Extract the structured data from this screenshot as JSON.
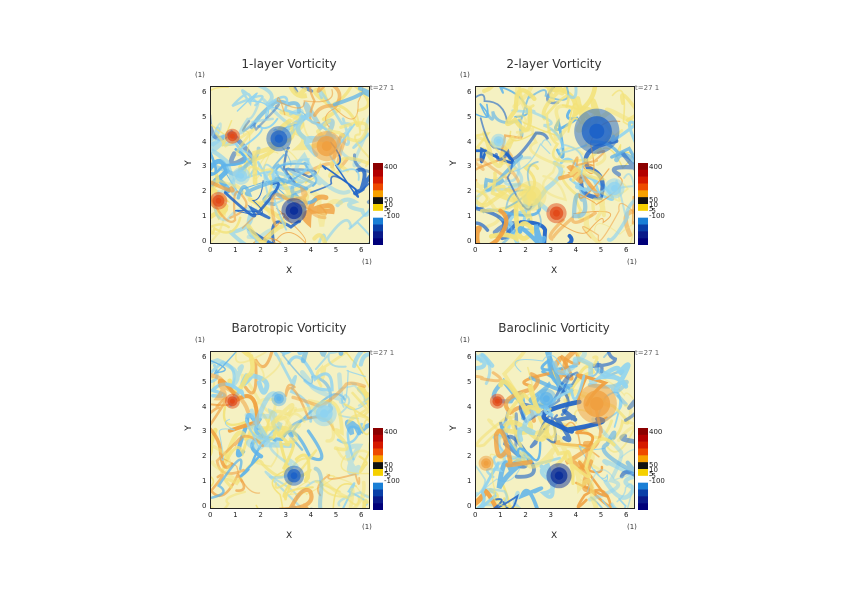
{
  "panels": [
    {
      "title": "1-layer Vorticity",
      "time_label": "t=27 1",
      "unit_label": "(1)"
    },
    {
      "title": "2-layer Vorticity",
      "time_label": "t=27 1",
      "unit_label": "(1)"
    },
    {
      "title": "Barotropic Vorticity",
      "time_label": "t=27 1",
      "unit_label": "(1)"
    },
    {
      "title": "Baroclinic Vorticity",
      "time_label": "t=27 1",
      "unit_label": "(1)"
    }
  ],
  "chart_data": [
    {
      "type": "heatmap",
      "title": "1-layer Vorticity",
      "xlabel": "X",
      "ylabel": "Y",
      "xlim": [
        0,
        6.28
      ],
      "ylim": [
        0,
        6.28
      ],
      "xticks": [
        "0",
        "1",
        "2",
        "3",
        "4",
        "5",
        "6"
      ],
      "yticks": [
        "0",
        "1",
        "2",
        "3",
        "4",
        "5",
        "6"
      ],
      "colorbar_labels": [
        "400",
        "50",
        "10",
        "5",
        "-5",
        "-100"
      ]
    },
    {
      "type": "heatmap",
      "title": "2-layer Vorticity",
      "xlabel": "X",
      "ylabel": "Y",
      "xlim": [
        0,
        6.28
      ],
      "ylim": [
        0,
        6.28
      ],
      "xticks": [
        "0",
        "1",
        "2",
        "3",
        "4",
        "5",
        "6"
      ],
      "yticks": [
        "0",
        "1",
        "2",
        "3",
        "4",
        "5",
        "6"
      ],
      "colorbar_labels": [
        "400",
        "50",
        "10",
        "5",
        "-5",
        "-100"
      ]
    },
    {
      "type": "heatmap",
      "title": "Barotropic Vorticity",
      "xlabel": "X",
      "ylabel": "Y",
      "xlim": [
        0,
        6.28
      ],
      "ylim": [
        0,
        6.28
      ],
      "xticks": [
        "0",
        "1",
        "2",
        "3",
        "4",
        "5",
        "6"
      ],
      "yticks": [
        "0",
        "1",
        "2",
        "3",
        "4",
        "5",
        "6"
      ],
      "colorbar_labels": [
        "400",
        "50",
        "10",
        "5",
        "-5",
        "-100"
      ]
    },
    {
      "type": "heatmap",
      "title": "Baroclinic Vorticity",
      "xlabel": "X",
      "ylabel": "Y",
      "xlim": [
        0,
        6.28
      ],
      "ylim": [
        0,
        6.28
      ],
      "xticks": [
        "0",
        "1",
        "2",
        "3",
        "4",
        "5",
        "6"
      ],
      "yticks": [
        "0",
        "1",
        "2",
        "3",
        "4",
        "5",
        "6"
      ],
      "colorbar_labels": [
        "400",
        "50",
        "10",
        "5",
        "-5",
        "-100"
      ]
    }
  ],
  "colorbar_colors": [
    "#8b0000",
    "#b30000",
    "#d61a00",
    "#ee4a00",
    "#f7a000",
    "#111111",
    "#f5d000",
    "#ffffff",
    "#1a7fd6",
    "#0a3fa8",
    "#0a1a8a",
    "#00007a"
  ],
  "field_colors": {
    "background": "#f5f1c2",
    "yellow": "#f3e27a",
    "cyan": "#8fd3f0",
    "lightblue": "#5fb3ea",
    "blue": "#1e63c8",
    "darkblue": "#0c2f9a",
    "orange": "#f0a040",
    "red": "#e24a1a",
    "darkred": "#b01a0a"
  }
}
